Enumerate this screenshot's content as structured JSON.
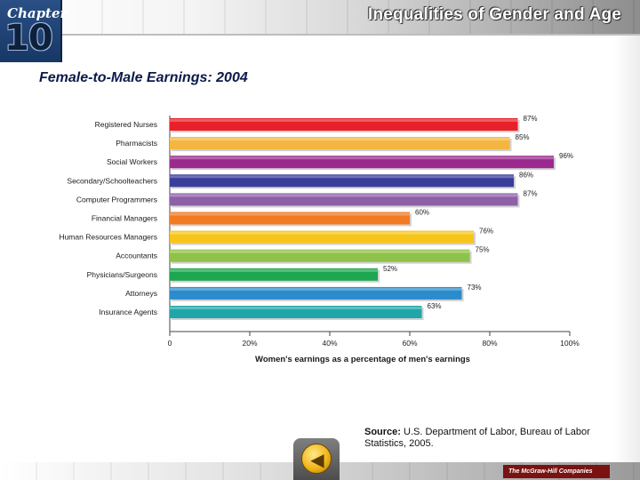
{
  "header": {
    "chapter_label": "Chapter",
    "chapter_number": "10",
    "title": "Inequalities of Gender and Age"
  },
  "colors": {
    "chapter_bg": "#1e3f70",
    "title_text": "#0c1a4a"
  },
  "chart_data": {
    "type": "bar",
    "orientation": "horizontal",
    "title": "Female-to-Male Earnings: 2004",
    "xlabel": "Women's earnings as a percentage of men's earnings",
    "ylabel": "",
    "xlim": [
      0,
      100
    ],
    "x_ticks": [
      "0",
      "20%",
      "40%",
      "60%",
      "80%",
      "100%"
    ],
    "grid": false,
    "categories": [
      "Registered Nurses",
      "Pharmacists",
      "Social Workers",
      "Secondary/Schoolteachers",
      "Computer Programmers",
      "Financial Managers",
      "Human Resources Managers",
      "Accountants",
      "Physicians/Surgeons",
      "Attorneys",
      "Insurance Agents"
    ],
    "values": [
      87,
      85,
      96,
      86,
      87,
      60,
      76,
      75,
      52,
      73,
      63
    ],
    "value_labels": [
      "87%",
      "85%",
      "96%",
      "86%",
      "87%",
      "60%",
      "76%",
      "75%",
      "52%",
      "73%",
      "63%"
    ],
    "bar_colors": [
      "#e8202a",
      "#f4b63f",
      "#9b2a8f",
      "#3a3d9a",
      "#8e60a8",
      "#f27a22",
      "#f7c51a",
      "#8fc24a",
      "#1ea650",
      "#2a8ccc",
      "#20a6a8"
    ]
  },
  "source": {
    "label": "Source:",
    "text": "U.S. Department of Labor, Bureau of Labor Statistics, 2005."
  },
  "footer": {
    "publisher": "The McGraw-Hill Companies",
    "back_glyph": "◀"
  }
}
